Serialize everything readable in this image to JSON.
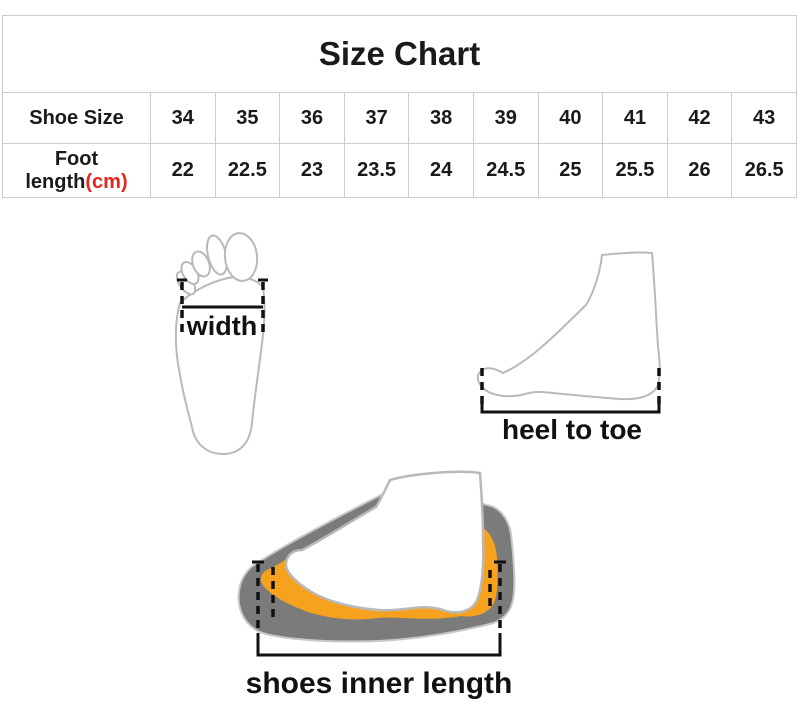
{
  "title": "Size Chart",
  "table": {
    "row1_label": "Shoe Size",
    "row2_label_black": "Foot length",
    "row2_label_red": "(cm)",
    "sizes": [
      "34",
      "35",
      "36",
      "37",
      "38",
      "39",
      "40",
      "41",
      "42",
      "43"
    ],
    "foot_lengths_cm": [
      "22",
      "22.5",
      "23",
      "23.5",
      "24",
      "24.5",
      "25",
      "25.5",
      "26",
      "26.5"
    ]
  },
  "diagrams": {
    "width_label": "width",
    "heel_to_toe_label": "heel to toe",
    "inner_length_label": "shoes inner length"
  },
  "colors": {
    "accent_red": "#e8251c",
    "table_border": "#cccccc",
    "text_black": "#1a1a1a",
    "foot_outline_gray": "#b9b9b9",
    "sole_gray": "#7b7b7b",
    "insole_orange": "#f6a21e"
  }
}
